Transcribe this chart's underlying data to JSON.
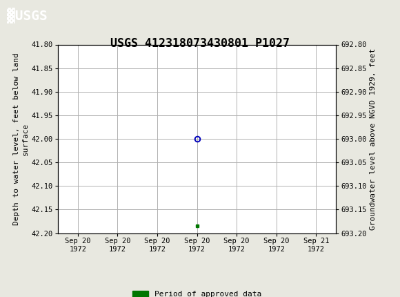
{
  "title": "USGS 412318073430801 P1027",
  "header_color": "#1a6b4a",
  "bg_color": "#e8e8e0",
  "plot_bg_color": "#ffffff",
  "grid_color": "#b0b0b0",
  "ylabel_left": "Depth to water level, feet below land\nsurface",
  "ylabel_right": "Groundwater level above NGVD 1929, feet",
  "ylim_left": [
    41.8,
    42.2
  ],
  "ylim_right": [
    692.8,
    693.2
  ],
  "yticks_left": [
    41.8,
    41.85,
    41.9,
    41.95,
    42.0,
    42.05,
    42.1,
    42.15,
    42.2
  ],
  "yticks_right": [
    693.2,
    693.15,
    693.1,
    693.05,
    693.0,
    692.95,
    692.9,
    692.85,
    692.8
  ],
  "y_data_circle": 42.0,
  "y_data_square": 42.185,
  "circle_color": "#0000bb",
  "square_color": "#007700",
  "x_tick_labels": [
    "Sep 20\n1972",
    "Sep 20\n1972",
    "Sep 20\n1972",
    "Sep 20\n1972",
    "Sep 20\n1972",
    "Sep 20\n1972",
    "Sep 21\n1972"
  ],
  "x_ticks": [
    0,
    1,
    2,
    3,
    4,
    5,
    6
  ],
  "xlim": [
    -0.5,
    6.5
  ],
  "legend_label": "Period of approved data",
  "legend_color": "#007700",
  "font_family": "monospace",
  "title_fontsize": 12,
  "axis_fontsize": 8,
  "tick_fontsize": 7.5
}
